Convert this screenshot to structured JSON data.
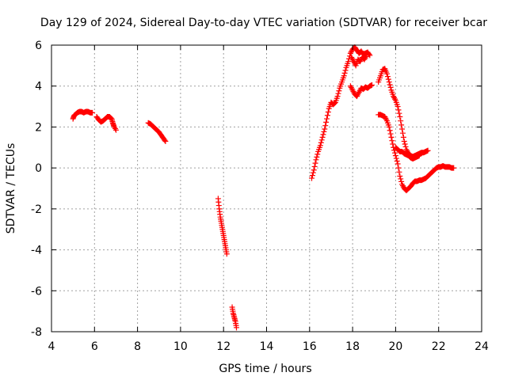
{
  "chart_data": {
    "type": "scatter",
    "title": "Day 129 of 2024, Sidereal Day-to-day VTEC variation (SDTVAR) for receiver bcar",
    "xlabel": "GPS time / hours",
    "ylabel": "SDTVAR / TECUs",
    "xlim": [
      4,
      24
    ],
    "ylim": [
      -8,
      6
    ],
    "xticks": [
      4,
      6,
      8,
      10,
      12,
      14,
      16,
      18,
      20,
      22,
      24
    ],
    "yticks": [
      -8,
      -6,
      -4,
      -2,
      0,
      2,
      4,
      6
    ],
    "grid": true,
    "legend": "none",
    "marker": "plus",
    "marker_color": "#ff0000",
    "series": [
      {
        "name": "seg1",
        "points": [
          [
            5.0,
            2.4
          ],
          [
            5.05,
            2.55
          ],
          [
            5.1,
            2.6
          ],
          [
            5.2,
            2.7
          ],
          [
            5.3,
            2.75
          ],
          [
            5.4,
            2.75
          ],
          [
            5.5,
            2.7
          ],
          [
            5.6,
            2.75
          ],
          [
            5.7,
            2.75
          ],
          [
            5.8,
            2.7
          ],
          [
            5.9,
            2.7
          ]
        ]
      },
      {
        "name": "seg2",
        "points": [
          [
            6.1,
            2.5
          ],
          [
            6.2,
            2.35
          ],
          [
            6.3,
            2.25
          ],
          [
            6.4,
            2.3
          ],
          [
            6.5,
            2.4
          ],
          [
            6.6,
            2.5
          ],
          [
            6.7,
            2.5
          ],
          [
            6.8,
            2.4
          ],
          [
            6.85,
            2.2
          ],
          [
            6.9,
            2.05
          ],
          [
            7.0,
            1.85
          ]
        ]
      },
      {
        "name": "seg3",
        "points": [
          [
            8.5,
            2.2
          ],
          [
            8.6,
            2.15
          ],
          [
            8.7,
            2.05
          ],
          [
            8.8,
            1.95
          ],
          [
            8.9,
            1.85
          ],
          [
            9.0,
            1.75
          ],
          [
            9.1,
            1.6
          ],
          [
            9.2,
            1.45
          ],
          [
            9.3,
            1.3
          ]
        ]
      },
      {
        "name": "seg4",
        "points": [
          [
            11.75,
            -1.5
          ],
          [
            11.8,
            -2.0
          ],
          [
            11.85,
            -2.4
          ],
          [
            11.9,
            -2.7
          ],
          [
            11.95,
            -3.0
          ],
          [
            12.0,
            -3.3
          ],
          [
            12.05,
            -3.6
          ],
          [
            12.1,
            -3.9
          ],
          [
            12.15,
            -4.2
          ]
        ]
      },
      {
        "name": "seg5",
        "points": [
          [
            12.4,
            -6.8
          ],
          [
            12.45,
            -7.1
          ],
          [
            12.5,
            -7.3
          ],
          [
            12.55,
            -7.5
          ],
          [
            12.6,
            -7.8
          ]
        ]
      },
      {
        "name": "seg6",
        "points": [
          [
            16.1,
            -0.5
          ],
          [
            16.2,
            -0.1
          ],
          [
            16.3,
            0.4
          ],
          [
            16.4,
            0.8
          ],
          [
            16.5,
            1.1
          ],
          [
            16.6,
            1.5
          ],
          [
            16.7,
            1.9
          ],
          [
            16.8,
            2.4
          ],
          [
            16.9,
            2.9
          ],
          [
            17.0,
            3.2
          ],
          [
            17.1,
            3.1
          ],
          [
            17.2,
            3.2
          ],
          [
            17.3,
            3.5
          ],
          [
            17.4,
            3.9
          ],
          [
            17.5,
            4.2
          ],
          [
            17.6,
            4.5
          ],
          [
            17.7,
            4.9
          ],
          [
            17.8,
            5.2
          ],
          [
            17.9,
            5.6
          ],
          [
            18.0,
            5.8
          ],
          [
            18.1,
            5.9
          ],
          [
            18.2,
            5.75
          ],
          [
            18.3,
            5.6
          ],
          [
            18.4,
            5.7
          ],
          [
            18.5,
            5.55
          ],
          [
            18.6,
            5.6
          ],
          [
            18.7,
            5.65
          ],
          [
            18.8,
            5.5
          ]
        ]
      },
      {
        "name": "seg7",
        "points": [
          [
            17.9,
            4.0
          ],
          [
            18.0,
            3.8
          ],
          [
            18.1,
            3.6
          ],
          [
            18.2,
            3.5
          ],
          [
            18.3,
            3.7
          ],
          [
            18.4,
            3.9
          ],
          [
            18.5,
            3.85
          ],
          [
            18.6,
            3.95
          ],
          [
            18.7,
            3.9
          ],
          [
            18.8,
            4.0
          ],
          [
            18.9,
            4.05
          ]
        ]
      },
      {
        "name": "seg8",
        "points": [
          [
            17.95,
            5.4
          ],
          [
            18.05,
            5.2
          ],
          [
            18.15,
            5.0
          ],
          [
            18.25,
            5.3
          ],
          [
            18.35,
            5.2
          ],
          [
            18.45,
            5.4
          ],
          [
            18.55,
            5.3
          ],
          [
            18.65,
            5.5
          ]
        ]
      },
      {
        "name": "seg9",
        "points": [
          [
            19.2,
            4.2
          ],
          [
            19.3,
            4.5
          ],
          [
            19.4,
            4.8
          ],
          [
            19.5,
            4.85
          ],
          [
            19.6,
            4.6
          ],
          [
            19.7,
            4.2
          ],
          [
            19.8,
            3.8
          ],
          [
            19.9,
            3.5
          ],
          [
            20.0,
            3.3
          ],
          [
            20.1,
            3.0
          ],
          [
            20.2,
            2.5
          ],
          [
            20.3,
            1.9
          ],
          [
            20.4,
            1.3
          ],
          [
            20.5,
            0.9
          ],
          [
            20.6,
            0.7
          ],
          [
            20.7,
            0.6
          ],
          [
            20.8,
            0.55
          ],
          [
            20.9,
            0.6
          ],
          [
            21.0,
            0.65
          ],
          [
            21.1,
            0.7
          ],
          [
            21.2,
            0.75
          ],
          [
            21.3,
            0.75
          ],
          [
            21.4,
            0.8
          ],
          [
            21.5,
            0.85
          ]
        ]
      },
      {
        "name": "seg10",
        "points": [
          [
            19.2,
            2.6
          ],
          [
            19.3,
            2.6
          ],
          [
            19.4,
            2.55
          ],
          [
            19.5,
            2.5
          ],
          [
            19.6,
            2.3
          ],
          [
            19.7,
            2.0
          ],
          [
            19.8,
            1.5
          ],
          [
            19.9,
            1.0
          ],
          [
            20.0,
            0.6
          ],
          [
            20.1,
            0.2
          ],
          [
            20.2,
            -0.4
          ],
          [
            20.3,
            -0.8
          ],
          [
            20.4,
            -1.0
          ],
          [
            20.5,
            -1.1
          ],
          [
            20.6,
            -1.0
          ],
          [
            20.7,
            -0.9
          ],
          [
            20.8,
            -0.75
          ],
          [
            20.9,
            -0.65
          ],
          [
            21.0,
            -0.65
          ],
          [
            21.1,
            -0.6
          ],
          [
            21.2,
            -0.6
          ],
          [
            21.3,
            -0.55
          ],
          [
            21.4,
            -0.5
          ],
          [
            21.5,
            -0.4
          ],
          [
            21.6,
            -0.3
          ],
          [
            21.7,
            -0.2
          ],
          [
            21.8,
            -0.1
          ],
          [
            21.9,
            0.0
          ],
          [
            22.0,
            0.05
          ],
          [
            22.1,
            0.05
          ],
          [
            22.2,
            0.1
          ],
          [
            22.3,
            0.05
          ],
          [
            22.4,
            0.05
          ],
          [
            22.5,
            0.05
          ],
          [
            22.6,
            0.0
          ],
          [
            22.7,
            0.0
          ]
        ]
      },
      {
        "name": "seg11",
        "points": [
          [
            20.0,
            1.0
          ],
          [
            20.1,
            0.9
          ],
          [
            20.2,
            0.8
          ],
          [
            20.3,
            0.8
          ],
          [
            20.4,
            0.7
          ],
          [
            20.5,
            0.65
          ],
          [
            20.6,
            0.6
          ],
          [
            20.7,
            0.5
          ],
          [
            20.8,
            0.45
          ],
          [
            20.9,
            0.5
          ],
          [
            21.0,
            0.55
          ],
          [
            21.1,
            0.6
          ]
        ]
      }
    ]
  }
}
